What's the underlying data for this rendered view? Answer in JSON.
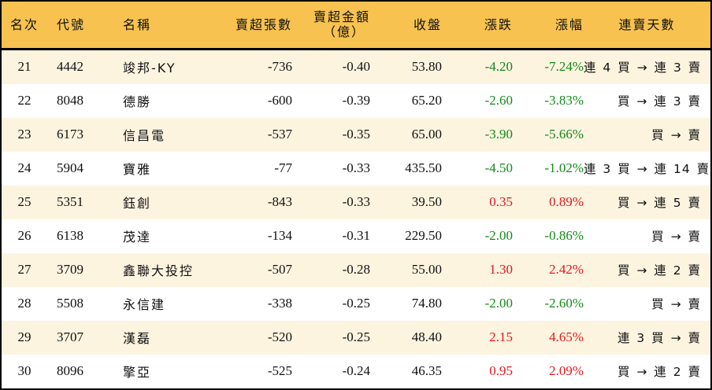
{
  "table": {
    "headers": {
      "rank": "名次",
      "code": "代號",
      "name": "名稱",
      "sell_volume": "賣超張數",
      "sell_amount_line1": "賣超金額",
      "sell_amount_line2": "（億）",
      "close": "收盤",
      "change": "漲跌",
      "change_pct": "漲幅",
      "streak": "連賣天數"
    },
    "colors": {
      "header_bg": "#F7C24F",
      "row_alt_bg": "#FDF4E0",
      "up": "#E8141B",
      "down": "#128A18"
    },
    "rows": [
      {
        "rank": "21",
        "code": "4442",
        "name": "竣邦-KY",
        "sell_volume": "-736",
        "sell_amount": "-0.40",
        "close": "53.80",
        "change": "-4.20",
        "change_pct": "-7.24%",
        "direction": "down",
        "streak": "連 4 買 → 連 3 賣"
      },
      {
        "rank": "22",
        "code": "8048",
        "name": "德勝",
        "sell_volume": "-600",
        "sell_amount": "-0.39",
        "close": "65.20",
        "change": "-2.60",
        "change_pct": "-3.83%",
        "direction": "down",
        "streak": "買 → 連 3 賣"
      },
      {
        "rank": "23",
        "code": "6173",
        "name": "信昌電",
        "sell_volume": "-537",
        "sell_amount": "-0.35",
        "close": "65.00",
        "change": "-3.90",
        "change_pct": "-5.66%",
        "direction": "down",
        "streak": "買 → 賣"
      },
      {
        "rank": "24",
        "code": "5904",
        "name": "寶雅",
        "sell_volume": "-77",
        "sell_amount": "-0.33",
        "close": "435.50",
        "change": "-4.50",
        "change_pct": "-1.02%",
        "direction": "down",
        "streak": "連 3 買 → 連 14 賣"
      },
      {
        "rank": "25",
        "code": "5351",
        "name": "鈺創",
        "sell_volume": "-843",
        "sell_amount": "-0.33",
        "close": "39.50",
        "change": "0.35",
        "change_pct": "0.89%",
        "direction": "up",
        "streak": "買 → 連 5 賣"
      },
      {
        "rank": "26",
        "code": "6138",
        "name": "茂達",
        "sell_volume": "-134",
        "sell_amount": "-0.31",
        "close": "229.50",
        "change": "-2.00",
        "change_pct": "-0.86%",
        "direction": "down",
        "streak": "買 → 賣"
      },
      {
        "rank": "27",
        "code": "3709",
        "name": "鑫聯大投控",
        "sell_volume": "-507",
        "sell_amount": "-0.28",
        "close": "55.00",
        "change": "1.30",
        "change_pct": "2.42%",
        "direction": "up",
        "streak": "買 → 連 2 賣"
      },
      {
        "rank": "28",
        "code": "5508",
        "name": "永信建",
        "sell_volume": "-338",
        "sell_amount": "-0.25",
        "close": "74.80",
        "change": "-2.00",
        "change_pct": "-2.60%",
        "direction": "down",
        "streak": "買 → 賣"
      },
      {
        "rank": "29",
        "code": "3707",
        "name": "漢磊",
        "sell_volume": "-520",
        "sell_amount": "-0.25",
        "close": "48.40",
        "change": "2.15",
        "change_pct": "4.65%",
        "direction": "up",
        "streak": "連 3 買 → 賣"
      },
      {
        "rank": "30",
        "code": "8096",
        "name": "擎亞",
        "sell_volume": "-525",
        "sell_amount": "-0.24",
        "close": "46.35",
        "change": "0.95",
        "change_pct": "2.09%",
        "direction": "up",
        "streak": "買 → 連 2 賣"
      }
    ]
  }
}
